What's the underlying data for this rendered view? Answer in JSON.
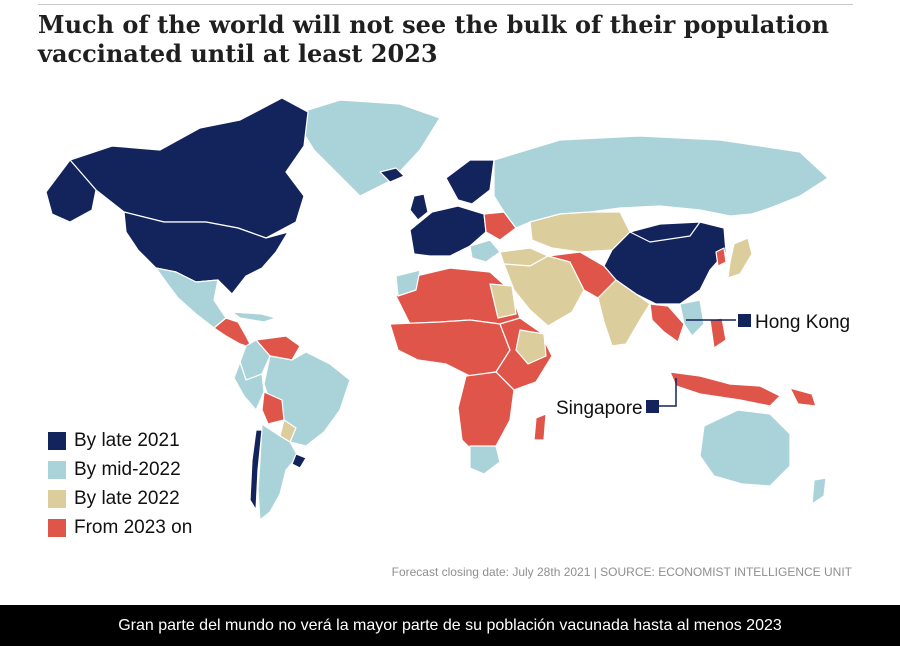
{
  "title": "Much of the world will not see the bulk of their population vaccinated until at least 2023",
  "legend": [
    {
      "label": "By late 2021",
      "color": "#13235b"
    },
    {
      "label": "By mid-2022",
      "color": "#a9d3d8"
    },
    {
      "label": "By late 2022",
      "color": "#dccd9c"
    },
    {
      "label": "From 2023 on",
      "color": "#e0554a"
    }
  ],
  "callouts": {
    "hong_kong": "Hong Kong",
    "singapore": "Singapore"
  },
  "footnote": "Forecast closing date: July 28th 2021 | SOURCE: ECONOMIST INTELLIGENCE UNIT",
  "subtitle": "Gran parte del mundo no verá la mayor parte de su población vacunada hasta al menos 2023"
}
